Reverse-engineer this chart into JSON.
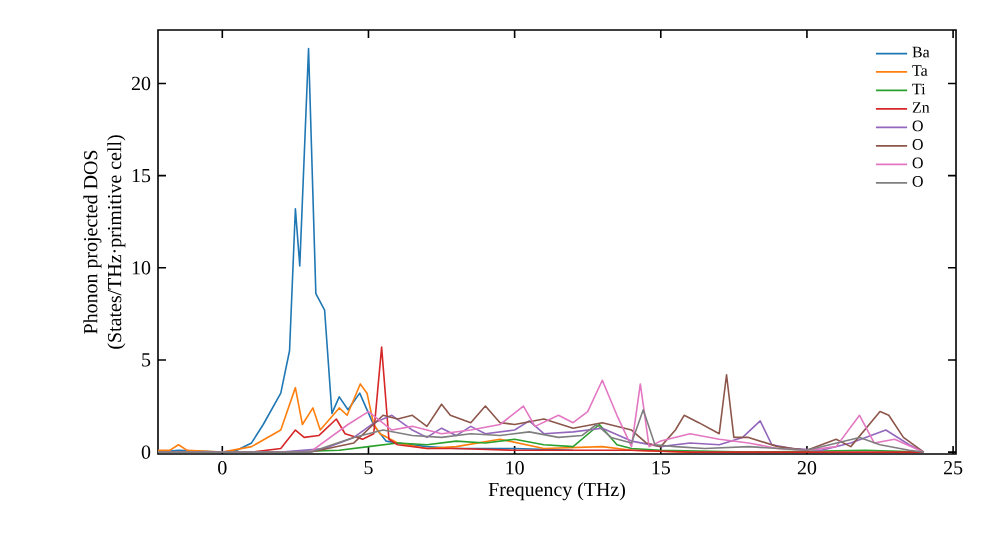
{
  "chart_data": {
    "type": "line",
    "xlabel": "Frequency (THz)",
    "ylabel": "Phonon projected DOS\n(States/THz·primitive cell)",
    "xlim": [
      -2.2,
      25.1
    ],
    "ylim": [
      -0.1,
      22.9
    ],
    "xticks": [
      0,
      5,
      10,
      15,
      20,
      25
    ],
    "yticks": [
      0,
      5,
      10,
      15,
      20
    ],
    "legend": "top right",
    "grid": false,
    "series": [
      {
        "name": "Ba",
        "color": "#1f77b4",
        "x": [
          -2.2,
          -1.5,
          0,
          0.5,
          1,
          1.4,
          2,
          2.3,
          2.5,
          2.65,
          2.95,
          3.2,
          3.5,
          3.75,
          4.0,
          4.3,
          4.7,
          5.2,
          5.6,
          6,
          7,
          8,
          10,
          12
        ],
        "values": [
          0,
          0.1,
          0,
          0.1,
          0.5,
          1.5,
          3.2,
          5.5,
          13.2,
          10.1,
          21.9,
          8.6,
          7.7,
          2.1,
          3.0,
          2.3,
          3.2,
          1.4,
          0.6,
          0.5,
          0.3,
          0.2,
          0.2,
          0.1
        ]
      },
      {
        "name": "Ta",
        "color": "#ff7f0e",
        "x": [
          -2.2,
          -1.8,
          -1.5,
          -1.2,
          0,
          1,
          2,
          2.5,
          2.74,
          3.1,
          3.35,
          4.0,
          4.27,
          4.72,
          4.95,
          5.18,
          5.4,
          6,
          7,
          8,
          9.5,
          11,
          13,
          14,
          16
        ],
        "values": [
          0.1,
          0.1,
          0.4,
          0.1,
          0,
          0.3,
          1.2,
          3.5,
          1.5,
          2.4,
          1.2,
          2.4,
          2.0,
          3.7,
          3.2,
          1.5,
          1.0,
          0.5,
          0.2,
          0.3,
          0.7,
          0.2,
          0.3,
          0.1,
          0
        ]
      },
      {
        "name": "Ti",
        "color": "#2ca02c",
        "x": [
          -2.2,
          2,
          4,
          5,
          6,
          7,
          8,
          9,
          10,
          11,
          12,
          12.9,
          13.5,
          14,
          15,
          18,
          22,
          24
        ],
        "values": [
          0,
          0,
          0.1,
          0.3,
          0.5,
          0.4,
          0.6,
          0.5,
          0.7,
          0.4,
          0.3,
          1.5,
          0.4,
          0.2,
          0.1,
          0,
          0.1,
          0
        ]
      },
      {
        "name": "Zn",
        "color": "#d62728",
        "x": [
          -2.2,
          1,
          2,
          2.5,
          2.8,
          3.3,
          3.9,
          4.2,
          4.8,
          5.18,
          5.45,
          5.7,
          6,
          7,
          8,
          10,
          12,
          14,
          16,
          24
        ],
        "values": [
          0,
          0,
          0.2,
          1.2,
          0.8,
          0.9,
          1.8,
          1.0,
          0.7,
          1.0,
          5.7,
          0.7,
          0.4,
          0.2,
          0.2,
          0.1,
          0.1,
          0.1,
          0,
          0
        ]
      },
      {
        "name": "O",
        "color": "#9467bd",
        "x": [
          -2.2,
          2,
          3.5,
          4.5,
          5.2,
          5.8,
          6.5,
          7,
          7.5,
          8,
          8.5,
          9,
          10,
          10.5,
          11,
          12,
          13,
          14,
          15,
          16,
          17,
          17.8,
          18.4,
          18.8,
          19.5,
          20.5,
          21.5,
          22.7,
          23.5,
          24
        ],
        "values": [
          0,
          0,
          0.2,
          0.8,
          1.6,
          2.0,
          1.2,
          0.8,
          1.3,
          0.9,
          1.4,
          1.0,
          1.2,
          1.7,
          1.0,
          1.1,
          1.3,
          0.6,
          0.3,
          0.5,
          0.4,
          0.8,
          1.7,
          0.4,
          0.2,
          0.1,
          0.5,
          1.2,
          0.4,
          0
        ]
      },
      {
        "name": "O",
        "color": "#8c564b",
        "x": [
          -2.2,
          3,
          4.5,
          5.5,
          6,
          6.5,
          7,
          7.5,
          7.8,
          8.5,
          9,
          9.5,
          10,
          11,
          12,
          13,
          14,
          14.5,
          15,
          15.5,
          15.8,
          16.3,
          17,
          17.25,
          17.5,
          18,
          19,
          20,
          21,
          21.5,
          22.5,
          22.8,
          23.3,
          24
        ],
        "values": [
          0,
          0,
          0.5,
          2.0,
          1.8,
          2.0,
          1.4,
          2.6,
          2.0,
          1.6,
          2.5,
          1.6,
          1.5,
          1.8,
          1.3,
          1.6,
          1.2,
          0.5,
          0.3,
          1.2,
          2.0,
          1.6,
          1.0,
          4.2,
          0.8,
          0.8,
          0.3,
          0.1,
          0.7,
          0.3,
          2.2,
          2.0,
          0.8,
          0
        ]
      },
      {
        "name": "O",
        "color": "#e377c2",
        "x": [
          -2.2,
          3,
          4.3,
          5,
          5.8,
          6.5,
          7.5,
          8.5,
          9.5,
          10.3,
          10.7,
          11.5,
          12,
          12.5,
          13,
          13.5,
          14,
          14.3,
          14.6,
          15,
          16,
          17,
          18,
          19,
          20,
          21,
          21.8,
          22.3,
          23,
          24
        ],
        "values": [
          0,
          0,
          1.5,
          2.2,
          1.2,
          1.4,
          1.0,
          1.2,
          1.5,
          2.5,
          1.4,
          2.0,
          1.6,
          2.2,
          3.9,
          2.0,
          0.3,
          3.7,
          0.3,
          0.6,
          1.0,
          0.7,
          0.5,
          0.2,
          0.1,
          0.3,
          2.0,
          0.5,
          0.7,
          0
        ]
      },
      {
        "name": "O",
        "color": "#7f7f7f",
        "x": [
          -2.2,
          3,
          4.5,
          5.5,
          6.5,
          7.5,
          8.5,
          9.5,
          10.5,
          11.5,
          12.3,
          12.8,
          13.3,
          14,
          14.4,
          14.8,
          15.5,
          16.5,
          18,
          20,
          21.8,
          22.5,
          23.5,
          24
        ],
        "values": [
          0,
          0,
          0.8,
          1.2,
          0.9,
          0.8,
          1.0,
          0.9,
          1.1,
          0.8,
          0.9,
          1.5,
          0.8,
          0.5,
          2.3,
          0.4,
          0.3,
          0.2,
          0.3,
          0.1,
          0.8,
          0.4,
          0.1,
          0
        ]
      }
    ]
  }
}
